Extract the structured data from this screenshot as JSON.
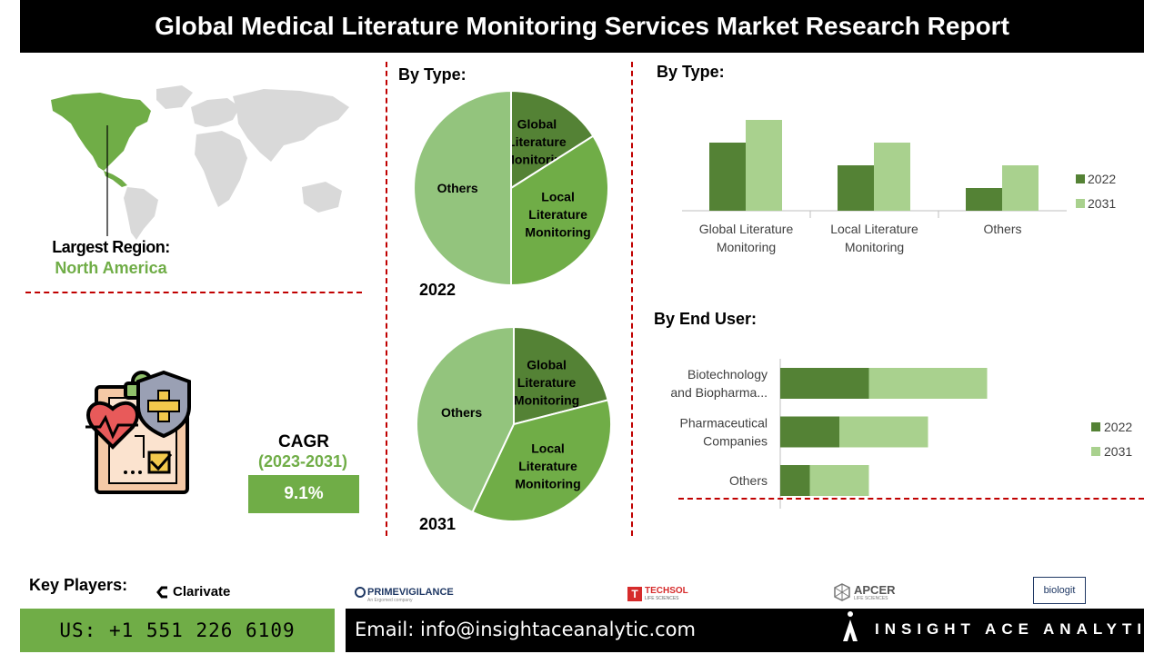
{
  "title": "Global Medical Literature Monitoring Services Market Research Report",
  "region": {
    "label": "Largest Region:",
    "value": "North America"
  },
  "cagr": {
    "label": "CAGR",
    "period": "(2023-2031)",
    "value": "9.1%"
  },
  "sections": {
    "pie_title": "By Type:",
    "bar_type_title": "By Type:",
    "bar_end_user_title": "By End User:"
  },
  "colors": {
    "dark_green": "#548235",
    "mid_green": "#70ad47",
    "light_green": "#a9d18e",
    "dash_red": "#c00000"
  },
  "chart_data": [
    {
      "type": "pie",
      "year_label": "2022",
      "slices": [
        {
          "name": "Global Literature Monitoring",
          "value": 16,
          "color": "#548235"
        },
        {
          "name": "Local Literature Monitoring",
          "value": 34,
          "color": "#70ad47"
        },
        {
          "name": "Others",
          "value": 50,
          "color": "#93c47d"
        }
      ]
    },
    {
      "type": "pie",
      "year_label": "2031",
      "slices": [
        {
          "name": "Global Literature Monitoring",
          "value": 21,
          "color": "#548235"
        },
        {
          "name": "Local Literature Monitoring",
          "value": 36,
          "color": "#70ad47"
        },
        {
          "name": "Others",
          "value": 43,
          "color": "#93c47d"
        }
      ]
    },
    {
      "type": "bar",
      "orientation": "vertical",
      "categories": [
        [
          "Global Literature",
          "Monitoring"
        ],
        [
          "Local Literature",
          "Monitoring"
        ],
        [
          "Others"
        ]
      ],
      "series": [
        {
          "name": "2022",
          "values": [
            3,
            2,
            1
          ],
          "color": "#548235"
        },
        {
          "name": "2031",
          "values": [
            4,
            3,
            2
          ],
          "color": "#a9d18e"
        }
      ],
      "ylim": [
        0,
        4
      ],
      "legend": "right"
    },
    {
      "type": "bar",
      "orientation": "horizontal",
      "stacked": true,
      "categories": [
        [
          "Biotechnology",
          "and Biopharma..."
        ],
        [
          "Pharmaceutical",
          "Companies"
        ],
        [
          "Others"
        ]
      ],
      "series": [
        {
          "name": "2022",
          "values": [
            3,
            2,
            1
          ],
          "color": "#548235"
        },
        {
          "name": "2031",
          "values": [
            4,
            3,
            2
          ],
          "color": "#a9d18e"
        }
      ],
      "xlim": [
        0,
        10
      ],
      "legend": "right"
    }
  ],
  "key_players": {
    "label": "Key Players:",
    "logos": [
      "Clarivate",
      "PRIMEVIGILANCE",
      "TECHSOL",
      "APCER",
      "biologit"
    ],
    "sublabels": {
      "primevigilance": "An Ergomed company",
      "techsol": "LIFE SCIENCES",
      "apcer": "LIFE SCIENCES"
    }
  },
  "contact": {
    "phone": "US: +1 551 226 6109",
    "email": "Email: info@insightaceanalytic.com",
    "brand": "INSIGHT ACE ANALYTIC"
  }
}
